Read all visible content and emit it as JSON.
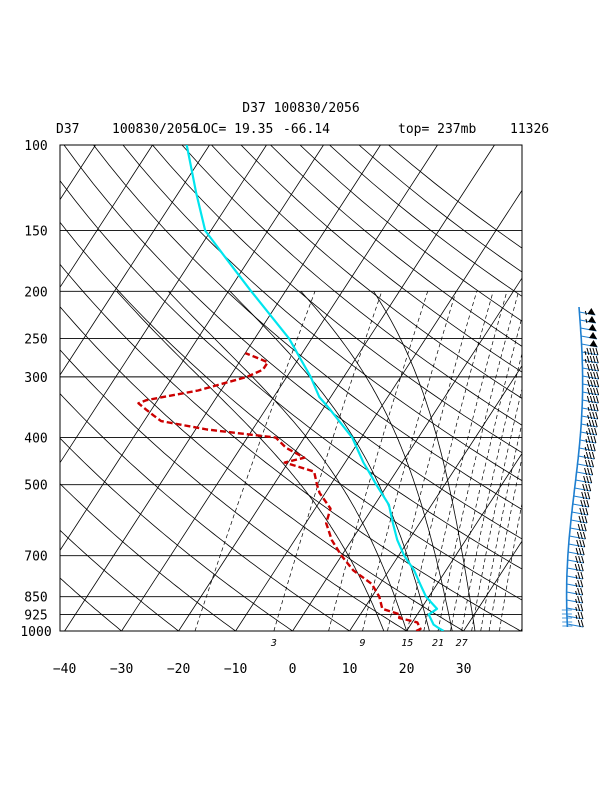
{
  "chart_data": {
    "type": "line",
    "title": "D37 100830/2056",
    "subtitle": {
      "station": "D37",
      "datetime": "100830/2056",
      "loc": "LOC= 19.35",
      "lon": "-66.14",
      "top": "top= 237mb",
      "value": "11326"
    },
    "xlim": [
      -40,
      40
    ],
    "pressure_levels": [
      100,
      150,
      200,
      250,
      300,
      400,
      500,
      700,
      850,
      925,
      1000
    ],
    "pressure_labels": [
      "100",
      "150",
      "200",
      "250",
      "300",
      "400",
      "500",
      "700",
      "850",
      "925",
      "1000"
    ],
    "temperature_ticks": [
      -40,
      -30,
      -20,
      -10,
      0,
      10,
      20,
      30
    ],
    "temperature_tick_labels": [
      "−40",
      "−30",
      "−20",
      "−10",
      "0",
      "10",
      "20",
      "30"
    ],
    "mixing_ratio_labels": [
      "3",
      "9",
      "15",
      "21",
      "27"
    ],
    "mixing_ratios": [
      3,
      9,
      15,
      21,
      27
    ],
    "colors": {
      "temperature": "#00e5ee",
      "dewpoint": "#cc0000",
      "wind_staff": "#1e7fd0",
      "wind_barb": "#000000",
      "grid": "#000000"
    },
    "series": [
      {
        "key": "temperature",
        "points": [
          [
            1000,
            26.5
          ],
          [
            990,
            25.6
          ],
          [
            970,
            24.0
          ],
          [
            925,
            22.0
          ],
          [
            900,
            22.8
          ],
          [
            850,
            19.5
          ],
          [
            800,
            17.0
          ],
          [
            750,
            14.4
          ],
          [
            700,
            11.0
          ],
          [
            650,
            8.0
          ],
          [
            600,
            5.3
          ],
          [
            550,
            2.5
          ],
          [
            500,
            -2.0
          ],
          [
            470,
            -4.8
          ],
          [
            450,
            -6.8
          ],
          [
            400,
            -11.6
          ],
          [
            350,
            -18.7
          ],
          [
            330,
            -22.0
          ],
          [
            300,
            -25.8
          ],
          [
            250,
            -34.0
          ],
          [
            200,
            -46.0
          ],
          [
            175,
            -53.0
          ],
          [
            150,
            -61.0
          ],
          [
            125,
            -67.0
          ],
          [
            110,
            -71.0
          ],
          [
            100,
            -74.0
          ]
        ]
      },
      {
        "key": "dewpoint",
        "points": [
          [
            1000,
            21.7
          ],
          [
            990,
            22.2
          ],
          [
            960,
            20.9
          ],
          [
            940,
            17.2
          ],
          [
            925,
            17.0
          ],
          [
            900,
            13.2
          ],
          [
            850,
            11.3
          ],
          [
            800,
            8.5
          ],
          [
            750,
            3.7
          ],
          [
            700,
            0.0
          ],
          [
            650,
            -3.5
          ],
          [
            600,
            -6.4
          ],
          [
            560,
            -7.3
          ],
          [
            520,
            -11.0
          ],
          [
            500,
            -12.4
          ],
          [
            470,
            -14.4
          ],
          [
            450,
            -20.6
          ],
          [
            440,
            -17.7
          ],
          [
            420,
            -22.0
          ],
          [
            400,
            -25.0
          ],
          [
            385,
            -38.0
          ],
          [
            370,
            -47.0
          ],
          [
            360,
            -49.0
          ],
          [
            350,
            -51.0
          ],
          [
            345,
            -52.0
          ],
          [
            340,
            -53.0
          ],
          [
            335,
            -52.0
          ],
          [
            320,
            -44.0
          ],
          [
            300,
            -37.0
          ],
          [
            290,
            -35.0
          ],
          [
            280,
            -35.0
          ],
          [
            275,
            -37.0
          ],
          [
            268,
            -40.0
          ]
        ]
      }
    ],
    "wind_profile": [
      [
        1000,
        20
      ],
      [
        925,
        25
      ],
      [
        850,
        25
      ],
      [
        700,
        30
      ],
      [
        600,
        30
      ],
      [
        500,
        30
      ],
      [
        400,
        35
      ],
      [
        300,
        40
      ],
      [
        250,
        50
      ],
      [
        200,
        60
      ]
    ]
  }
}
